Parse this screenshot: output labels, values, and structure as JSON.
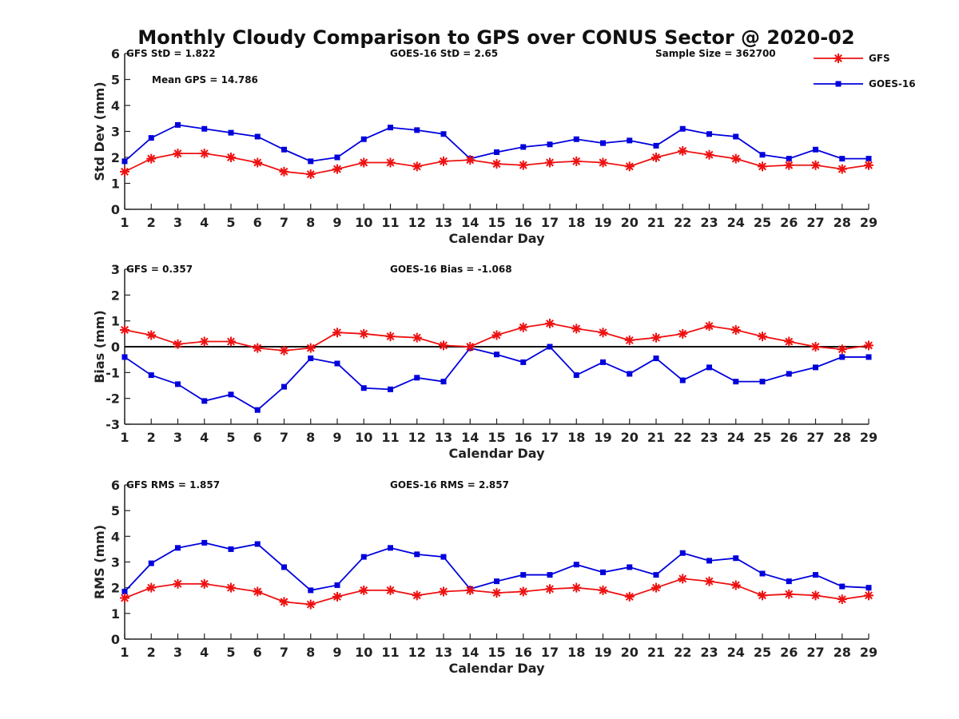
{
  "title": "Monthly Cloudy Comparison to GPS over CONUS Sector @ 2020-02",
  "colors": {
    "GFS": "#ee1111",
    "GOES-16": "#0000dd"
  },
  "legend": {
    "placement": "top-right",
    "entries": [
      {
        "name": "GFS",
        "marker": "star"
      },
      {
        "name": "GOES-16",
        "marker": "square"
      }
    ]
  },
  "chart_data": [
    {
      "type": "line",
      "xlabel": "Calendar Day",
      "ylabel": "Std Dev (mm)",
      "xlim": [
        1,
        29
      ],
      "ylim": [
        0,
        6
      ],
      "yticks": [
        0,
        1,
        2,
        3,
        4,
        5,
        6
      ],
      "x": [
        1,
        2,
        3,
        4,
        5,
        6,
        7,
        8,
        9,
        10,
        11,
        12,
        13,
        14,
        15,
        16,
        17,
        18,
        19,
        20,
        21,
        22,
        23,
        24,
        25,
        26,
        27,
        28,
        29
      ],
      "series": [
        {
          "name": "GFS",
          "values": [
            1.45,
            1.95,
            2.15,
            2.15,
            2.0,
            1.8,
            1.45,
            1.35,
            1.55,
            1.8,
            1.8,
            1.65,
            1.85,
            1.9,
            1.75,
            1.7,
            1.8,
            1.85,
            1.8,
            1.65,
            2.0,
            2.25,
            2.1,
            1.95,
            1.65,
            1.7,
            1.7,
            1.55,
            1.7
          ]
        },
        {
          "name": "GOES-16",
          "values": [
            1.85,
            2.75,
            3.25,
            3.1,
            2.95,
            2.8,
            2.3,
            1.85,
            2.0,
            2.7,
            3.15,
            3.05,
            2.9,
            1.95,
            2.2,
            2.4,
            2.5,
            2.7,
            2.55,
            2.65,
            2.45,
            3.1,
            2.9,
            2.8,
            2.1,
            1.95,
            2.3,
            1.95,
            1.95
          ]
        }
      ],
      "annotations": [
        "GFS StD = 1.822",
        "GOES-16 StD = 2.65",
        "Sample Size = 362700",
        "Mean GPS = 14.786"
      ]
    },
    {
      "type": "line",
      "xlabel": "Calendar Day",
      "ylabel": "Bias (mm)",
      "xlim": [
        1,
        29
      ],
      "ylim": [
        -3,
        3
      ],
      "yticks": [
        -3,
        -2,
        -1,
        0,
        1,
        2,
        3
      ],
      "zero_line": true,
      "x": [
        1,
        2,
        3,
        4,
        5,
        6,
        7,
        8,
        9,
        10,
        11,
        12,
        13,
        14,
        15,
        16,
        17,
        18,
        19,
        20,
        21,
        22,
        23,
        24,
        25,
        26,
        27,
        28,
        29
      ],
      "series": [
        {
          "name": "GFS",
          "values": [
            0.65,
            0.45,
            0.1,
            0.2,
            0.2,
            -0.05,
            -0.15,
            -0.05,
            0.55,
            0.5,
            0.4,
            0.35,
            0.05,
            0.0,
            0.45,
            0.75,
            0.9,
            0.7,
            0.55,
            0.25,
            0.35,
            0.5,
            0.8,
            0.65,
            0.4,
            0.2,
            0.0,
            -0.1,
            0.05
          ]
        },
        {
          "name": "GOES-16",
          "values": [
            -0.4,
            -1.1,
            -1.45,
            -2.1,
            -1.85,
            -2.45,
            -1.55,
            -0.45,
            -0.65,
            -1.6,
            -1.65,
            -1.2,
            -1.35,
            -0.05,
            -0.3,
            -0.6,
            0.0,
            -1.1,
            -0.6,
            -1.05,
            -0.45,
            -1.3,
            -0.8,
            -1.35,
            -1.35,
            -1.05,
            -0.8,
            -0.4,
            -0.4
          ]
        }
      ],
      "annotations": [
        "GFS = 0.357",
        "GOES-16 Bias = -1.068"
      ]
    },
    {
      "type": "line",
      "xlabel": "Calendar Day",
      "ylabel": "RMS (mm)",
      "xlim": [
        1,
        29
      ],
      "ylim": [
        0,
        6
      ],
      "yticks": [
        0,
        1,
        2,
        3,
        4,
        5,
        6
      ],
      "x": [
        1,
        2,
        3,
        4,
        5,
        6,
        7,
        8,
        9,
        10,
        11,
        12,
        13,
        14,
        15,
        16,
        17,
        18,
        19,
        20,
        21,
        22,
        23,
        24,
        25,
        26,
        27,
        28,
        29
      ],
      "series": [
        {
          "name": "GFS",
          "values": [
            1.6,
            2.0,
            2.15,
            2.15,
            2.0,
            1.85,
            1.45,
            1.35,
            1.65,
            1.9,
            1.9,
            1.7,
            1.85,
            1.9,
            1.8,
            1.85,
            1.95,
            2.0,
            1.9,
            1.65,
            2.0,
            2.35,
            2.25,
            2.1,
            1.7,
            1.75,
            1.7,
            1.55,
            1.7
          ]
        },
        {
          "name": "GOES-16",
          "values": [
            1.85,
            2.95,
            3.55,
            3.75,
            3.5,
            3.7,
            2.8,
            1.9,
            2.1,
            3.2,
            3.55,
            3.3,
            3.2,
            1.95,
            2.25,
            2.5,
            2.5,
            2.9,
            2.6,
            2.8,
            2.5,
            3.35,
            3.05,
            3.15,
            2.55,
            2.25,
            2.5,
            2.05,
            2.0
          ]
        }
      ],
      "annotations": [
        "GFS RMS = 1.857",
        "GOES-16 RMS = 2.857"
      ]
    }
  ]
}
